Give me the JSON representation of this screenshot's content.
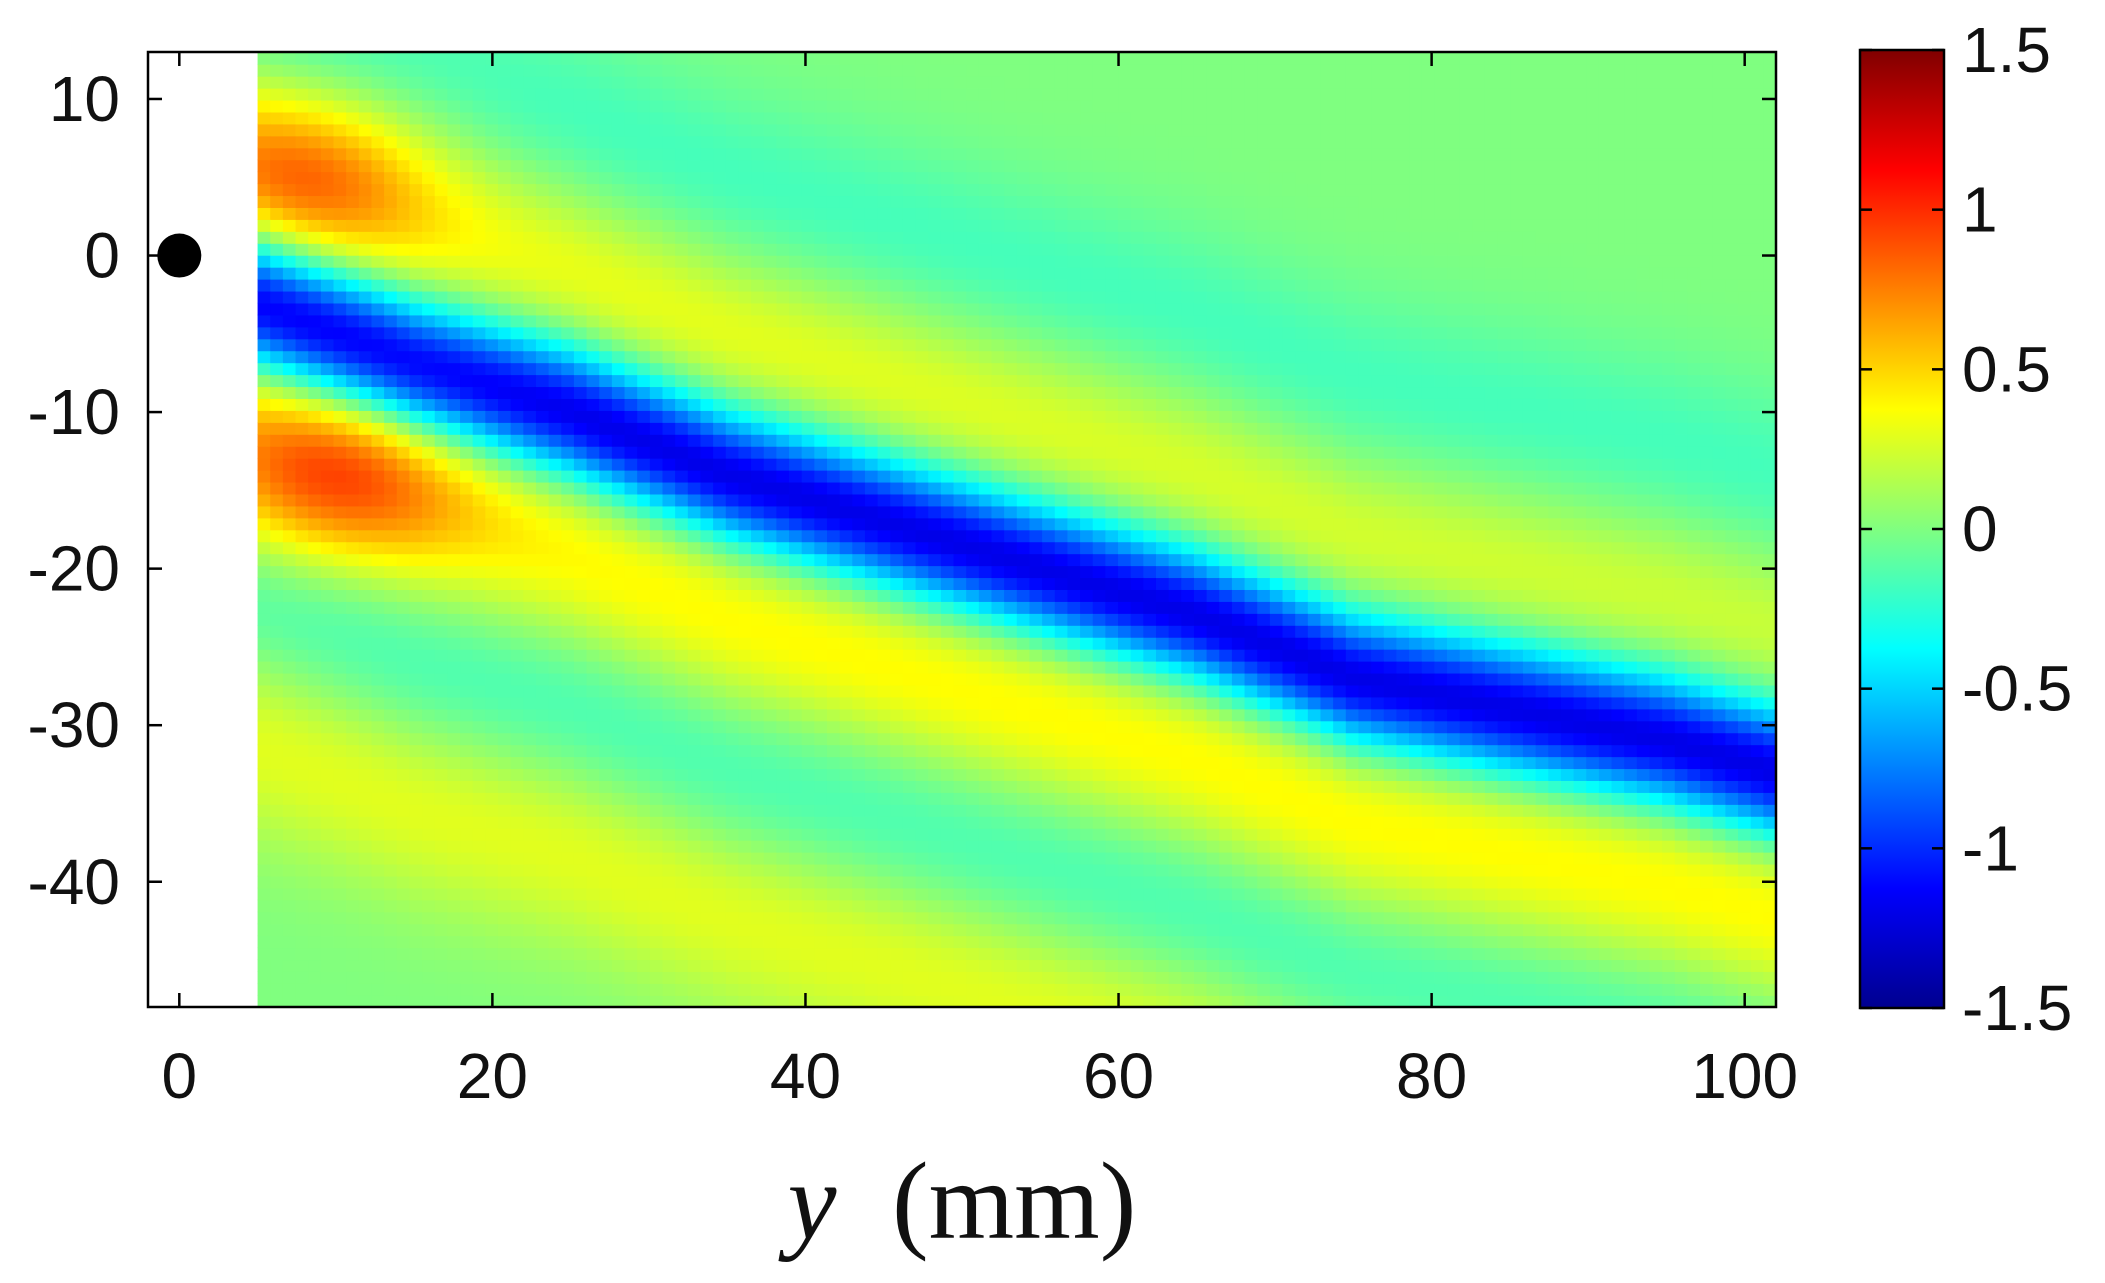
{
  "chart_data": {
    "type": "heatmap",
    "title": "",
    "xlabel_var": "y",
    "xlabel_unit": "(mm)",
    "ylabel": "",
    "xlim": [
      -2,
      102
    ],
    "ylim": [
      -48,
      13
    ],
    "x_ticks": [
      0,
      20,
      40,
      60,
      80,
      100
    ],
    "y_ticks": [
      10,
      0,
      -10,
      -20,
      -30,
      -40
    ],
    "x_tick_labels": [
      "0",
      "20",
      "40",
      "60",
      "80",
      "100"
    ],
    "y_tick_labels": [
      "10",
      "0",
      "-10",
      "-20",
      "-30",
      "-40"
    ],
    "data_extent_x": [
      5,
      102
    ],
    "colorbar": {
      "range": [
        -1.5,
        1.5
      ],
      "ticks": [
        1.5,
        1,
        0.5,
        0,
        -0.5,
        -1,
        -1.5
      ],
      "tick_labels": [
        "1.5",
        "1",
        "0.5",
        "0",
        "-0.5",
        "-1",
        "-1.5"
      ],
      "colormap": "jet"
    },
    "marker": {
      "x": 0,
      "y": 0,
      "shape": "filled-circle",
      "color": "#000000"
    },
    "grid": false,
    "field_features": {
      "negative_band_centerline": [
        [
          5,
          -3
        ],
        [
          15,
          -7
        ],
        [
          25,
          -10
        ],
        [
          35,
          -14
        ],
        [
          45,
          -17
        ],
        [
          55,
          -20
        ],
        [
          65,
          -23
        ],
        [
          75,
          -27
        ],
        [
          85,
          -29
        ],
        [
          95,
          -31
        ],
        [
          102,
          -33
        ]
      ],
      "negative_band_min": -1.25,
      "positive_lobes": [
        {
          "x": 8,
          "y": 5,
          "value": 0.8
        },
        {
          "x": 10,
          "y": -14,
          "value": 0.85
        }
      ],
      "upper_positive_band_value": 0.35,
      "lower_positive_band_value": 0.4,
      "background_value": 0.0
    }
  }
}
